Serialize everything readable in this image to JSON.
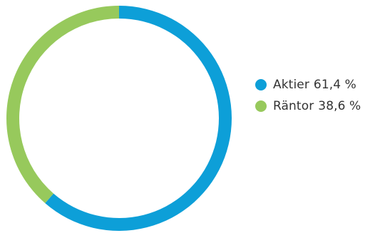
{
  "chart_data": {
    "type": "pie",
    "variant": "donut",
    "categories": [
      "Aktier",
      "Räntor"
    ],
    "values": [
      61.4,
      38.6
    ],
    "value_labels": [
      "61,4 %",
      "38,6 %"
    ],
    "colors": [
      "#0d9fd8",
      "#97c95c"
    ],
    "legend_position": "right",
    "start_angle_deg": 0,
    "direction": "clockwise"
  }
}
